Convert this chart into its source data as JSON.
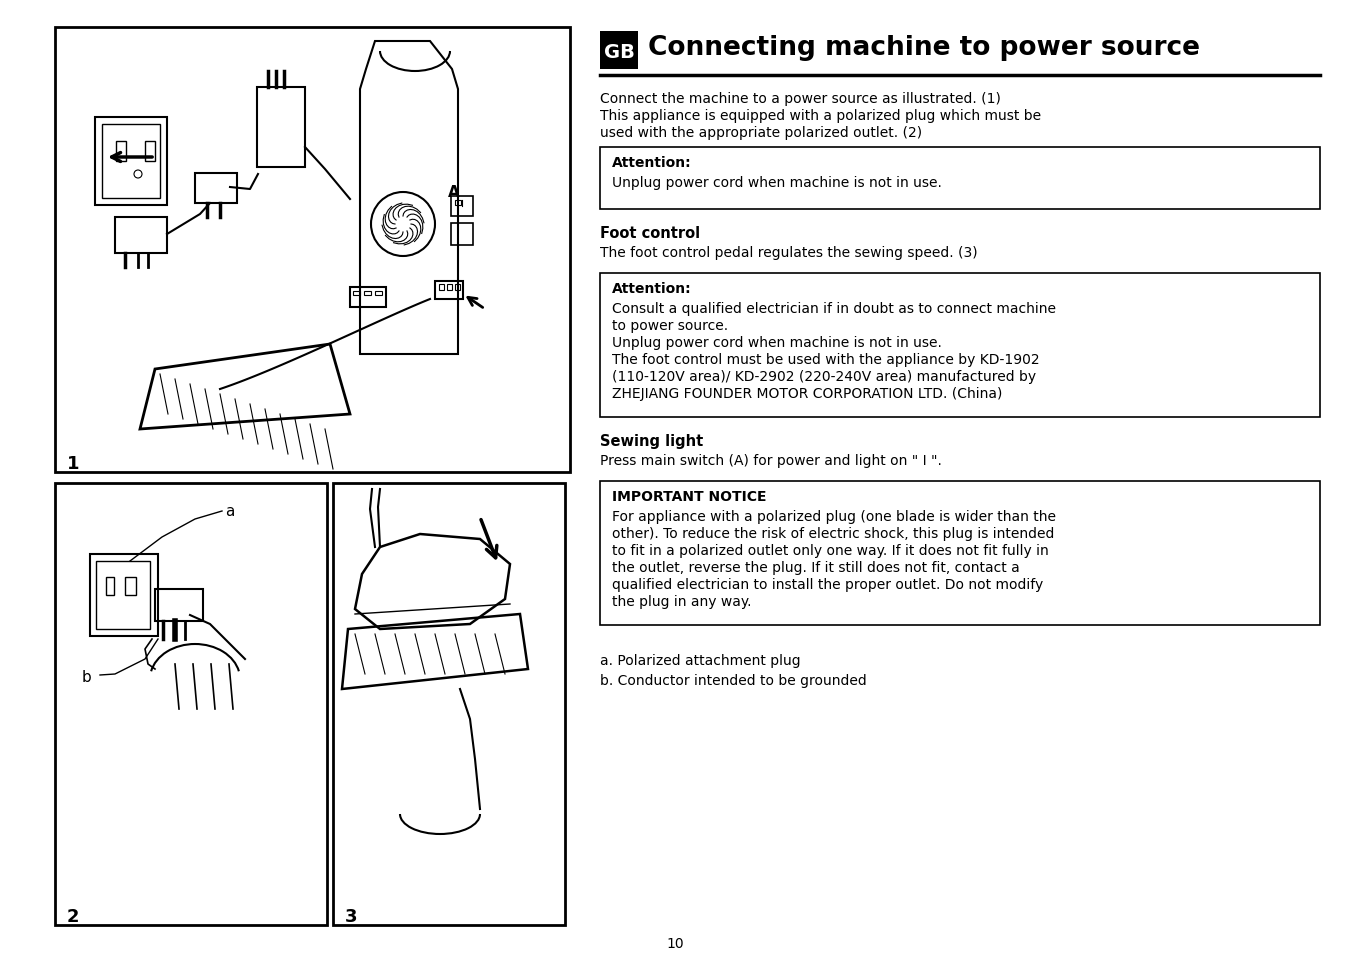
{
  "bg_color": "#ffffff",
  "title_text": "Connecting machine to power source",
  "title_gb": "GB",
  "body_text_1": "Connect the machine to a power source as illustrated. (1)",
  "body_text_2a": "This appliance is equipped with a polarized plug which must be",
  "body_text_2b": "used with the appropriate polarized outlet. (2)",
  "attention1_title": "Attention:",
  "attention1_body": "Unplug power cord when machine is not in use.",
  "foot_control_title": "Foot control",
  "foot_control_body": "The foot control pedal regulates the sewing speed. (3)",
  "attention2_title": "Attention:",
  "attention2_lines": [
    "Consult a qualified electrician if in doubt as to connect machine",
    "to power source.",
    "Unplug power cord when machine is not in use.",
    "The foot control must be used with the appliance by KD-1902",
    "(110-120V area)/ KD-2902 (220-240V area) manufactured by",
    "ZHEJIANG FOUNDER MOTOR CORPORATION LTD. (China)"
  ],
  "sewing_title": "Sewing light",
  "sewing_body": "Press main switch (A) for power and light on \" I \".",
  "important_title": "IMPORTANT NOTICE",
  "important_lines": [
    "For appliance with a polarized plug (one blade is wider than the",
    "other). To reduce the risk of electric shock, this plug is intended",
    "to fit in a polarized outlet only one way. If it does not fit fully in",
    "the outlet, reverse the plug. If it still does not fit, contact a",
    "qualified electrician to install the proper outlet. Do not modify",
    "the plug in any way."
  ],
  "footnote_a": "a. Polarized attachment plug",
  "footnote_b": "b. Conductor intended to be grounded",
  "page_number": "10",
  "label_1": "1",
  "label_2": "2",
  "label_3": "3",
  "label_a": "a",
  "label_b": "b",
  "label_A": "A",
  "text_color": "#000000",
  "box_color": "#000000"
}
